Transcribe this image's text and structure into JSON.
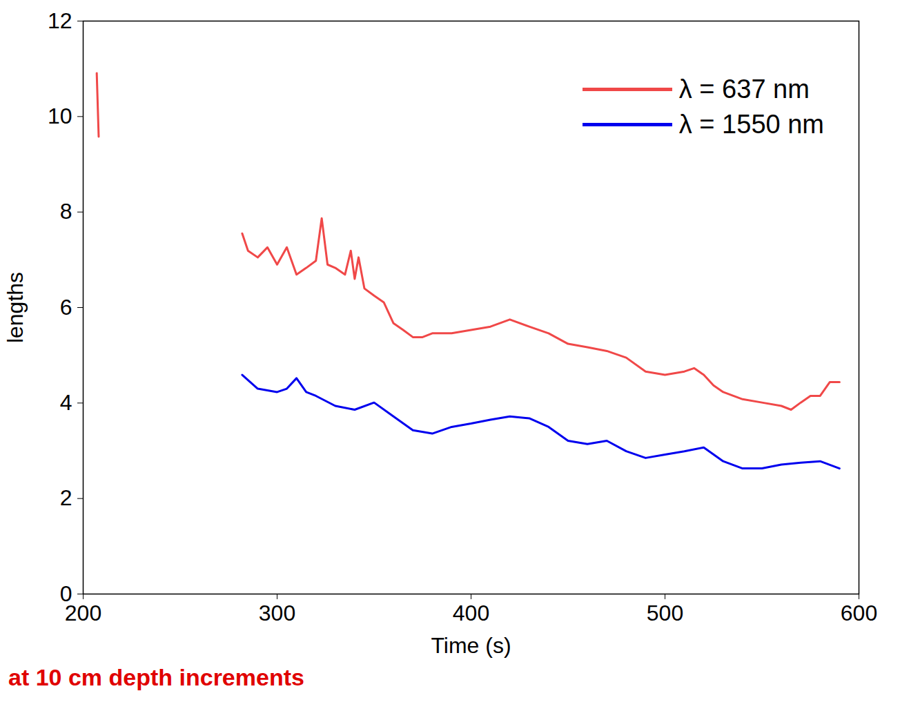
{
  "chart_data": {
    "type": "line",
    "y_label": "lengths",
    "x_label": "Time (s)",
    "annotation": "at 10 cm depth increments",
    "xlim": [
      200,
      600
    ],
    "xticks": [
      200,
      300,
      400,
      500,
      600
    ],
    "ylim": [
      0,
      12
    ],
    "yticks": [
      0,
      2,
      4,
      6,
      8,
      10,
      12
    ],
    "legend": "top-right",
    "series": [
      {
        "name": "λ = 637 nm",
        "color": "#f04848",
        "x": [
          207,
          208,
          209,
          282,
          285,
          290,
          295,
          300,
          305,
          310,
          315,
          320,
          323,
          326,
          330,
          335,
          338,
          340,
          342,
          345,
          350,
          355,
          360,
          365,
          370,
          375,
          380,
          390,
          400,
          410,
          420,
          430,
          440,
          450,
          460,
          470,
          480,
          490,
          500,
          510,
          515,
          520,
          525,
          530,
          540,
          550,
          560,
          565,
          570,
          575,
          580,
          585,
          590
        ],
        "values": [
          10.91,
          9.58,
          null,
          7.55,
          7.19,
          7.05,
          7.26,
          6.9,
          7.26,
          6.69,
          6.83,
          6.98,
          7.87,
          6.9,
          6.83,
          6.69,
          7.19,
          6.6,
          7.05,
          6.4,
          6.25,
          6.11,
          5.67,
          5.53,
          5.38,
          5.38,
          5.46,
          5.46,
          5.53,
          5.6,
          5.75,
          5.6,
          5.46,
          5.24,
          5.17,
          5.09,
          4.95,
          4.66,
          4.59,
          4.66,
          4.73,
          4.59,
          4.37,
          4.23,
          4.08,
          4.01,
          3.94,
          3.86,
          4.01,
          4.15,
          4.15,
          4.44,
          4.44
        ]
      },
      {
        "name": "λ = 1550 nm",
        "color": "#0000ee",
        "x": [
          282,
          290,
          300,
          305,
          310,
          315,
          320,
          330,
          340,
          350,
          360,
          370,
          380,
          390,
          400,
          410,
          420,
          430,
          440,
          450,
          460,
          470,
          480,
          490,
          500,
          510,
          520,
          530,
          540,
          550,
          560,
          570,
          580,
          590
        ],
        "values": [
          4.59,
          4.3,
          4.23,
          4.3,
          4.52,
          4.23,
          4.15,
          3.94,
          3.86,
          4.01,
          3.72,
          3.43,
          3.36,
          3.5,
          3.57,
          3.65,
          3.72,
          3.68,
          3.5,
          3.21,
          3.14,
          3.21,
          2.99,
          2.85,
          2.92,
          2.99,
          3.07,
          2.78,
          2.63,
          2.63,
          2.71,
          2.75,
          2.78,
          2.63
        ]
      }
    ]
  }
}
